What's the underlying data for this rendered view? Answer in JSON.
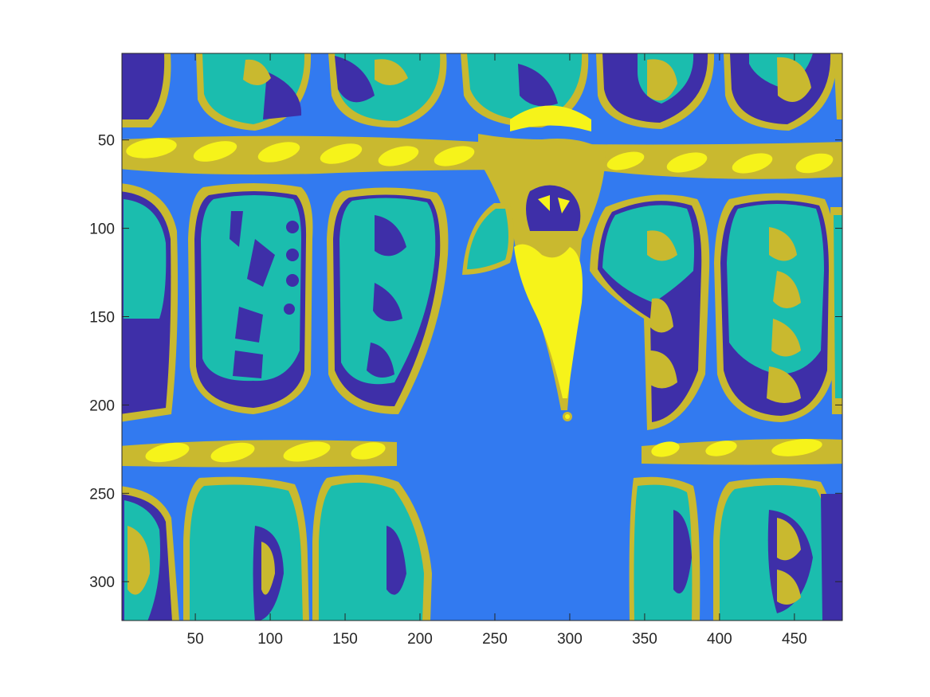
{
  "figure": {
    "palette": {
      "background": "#ffffff",
      "axis": "#262626",
      "class_dark_blue": "#3e2fa8",
      "class_blue": "#327af0",
      "class_teal": "#1bbdae",
      "class_olive": "#c9b92f",
      "class_yellow": "#f6f31a"
    },
    "image_extent": {
      "x": [
        1,
        482
      ],
      "y": [
        1,
        322
      ]
    },
    "x_axis": {
      "ticks": [
        50,
        100,
        150,
        200,
        250,
        300,
        350,
        400,
        450
      ],
      "tick_labels": [
        "50",
        "100",
        "150",
        "200",
        "250",
        "300",
        "350",
        "400",
        "450"
      ]
    },
    "y_axis": {
      "ticks": [
        50,
        100,
        150,
        200,
        250,
        300
      ],
      "tick_labels": [
        "50",
        "100",
        "150",
        "200",
        "250",
        "300"
      ]
    }
  }
}
